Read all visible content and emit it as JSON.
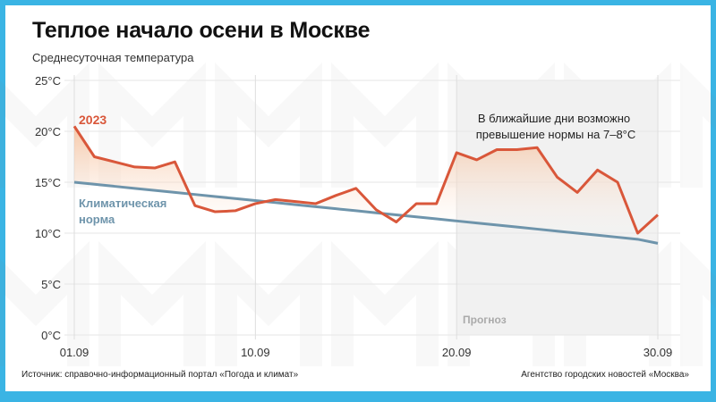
{
  "title": "Теплое начало осени в Москве",
  "subtitle": "Среднесуточная температура",
  "annotation": {
    "line1": "В ближайшие дни возможно",
    "line2": "превышение нормы на 7–8°C"
  },
  "forecast_label": "Прогноз",
  "legend": {
    "series_2023": "2023",
    "norm_line1": "Климатическая",
    "norm_line2": "норма"
  },
  "y_ticks": [
    "25°C",
    "20°C",
    "15°C",
    "10°C",
    "5°C",
    "0°C"
  ],
  "x_ticks": [
    "01.09",
    "10.09",
    "20.09",
    "30.09"
  ],
  "source": "Источник: справочно-информационный портал «Погода и климат»",
  "agency": "Агентство городских новостей «Москва»",
  "colors": {
    "frame": "#3ab4e4",
    "series_2023": "#d9573a",
    "norm": "#6e94ab",
    "forecast_fill": "#f0f0f0"
  },
  "chart_data": {
    "type": "line",
    "title": "Теплое начало осени в Москве",
    "subtitle": "Среднесуточная температура",
    "xlabel": "",
    "ylabel": "°C",
    "ylim": [
      0,
      25
    ],
    "grid": true,
    "x": [
      "01.09",
      "02.09",
      "03.09",
      "04.09",
      "05.09",
      "06.09",
      "07.09",
      "08.09",
      "09.09",
      "10.09",
      "11.09",
      "12.09",
      "13.09",
      "14.09",
      "15.09",
      "16.09",
      "17.09",
      "18.09",
      "19.09",
      "20.09",
      "21.09",
      "22.09",
      "23.09",
      "24.09",
      "25.09",
      "26.09",
      "27.09",
      "28.09",
      "29.09",
      "30.09"
    ],
    "x_tick_labels": [
      "01.09",
      "10.09",
      "20.09",
      "30.09"
    ],
    "series": [
      {
        "name": "2023",
        "values": [
          20.5,
          17.5,
          17.0,
          16.5,
          16.4,
          17.0,
          12.7,
          12.1,
          12.2,
          12.9,
          13.3,
          13.1,
          12.9,
          13.7,
          14.4,
          12.3,
          11.1,
          12.9,
          12.9,
          17.9,
          17.2,
          18.2,
          18.2,
          18.4,
          15.5,
          14.0,
          16.2,
          15.0,
          10.0,
          11.8
        ]
      },
      {
        "name": "Климатическая норма",
        "values": [
          15.0,
          14.8,
          14.6,
          14.4,
          14.2,
          14.0,
          13.8,
          13.6,
          13.4,
          13.2,
          13.0,
          12.8,
          12.6,
          12.4,
          12.2,
          12.0,
          11.8,
          11.6,
          11.4,
          11.2,
          11.0,
          10.8,
          10.6,
          10.4,
          10.2,
          10.0,
          9.8,
          9.6,
          9.4,
          9.0
        ]
      }
    ],
    "forecast_region": {
      "from": "20.09",
      "to": "30.09",
      "label": "Прогноз"
    },
    "annotations": [
      "В ближайшие дни возможно превышение нормы на 7–8°C"
    ]
  }
}
